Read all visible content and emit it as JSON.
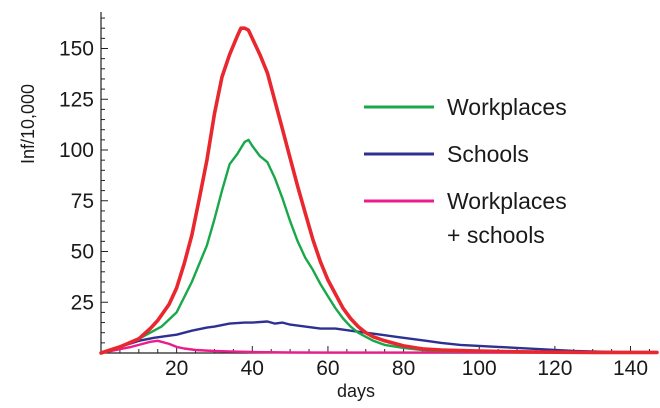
{
  "chart_data": {
    "type": "line",
    "title": "",
    "xlabel": "days",
    "ylabel": "Inf/10,000",
    "xlim": [
      0,
      147
    ],
    "ylim": [
      0,
      167
    ],
    "xticks": [
      20,
      40,
      60,
      80,
      100,
      120,
      140
    ],
    "yticks": [
      25,
      50,
      75,
      100,
      125,
      150
    ],
    "grid": false,
    "legend_position": "right",
    "series": [
      {
        "name": "",
        "color": "#e8282e",
        "x": [
          0,
          5,
          10,
          13,
          15,
          18,
          20,
          22,
          24,
          26,
          28,
          30,
          32,
          34,
          36,
          37,
          38,
          39,
          40,
          42,
          44,
          46,
          48,
          50,
          52,
          54,
          56,
          58,
          60,
          62,
          64,
          66,
          68,
          70,
          72,
          75,
          80,
          85,
          90,
          100,
          110,
          120,
          130,
          140,
          147
        ],
        "y": [
          0,
          3,
          7,
          12,
          16,
          24,
          32,
          44,
          58,
          76,
          95,
          118,
          136,
          147,
          156,
          160,
          160,
          159,
          155,
          147,
          138,
          124,
          110,
          96,
          82,
          69,
          56,
          45,
          36,
          29,
          22,
          17,
          13,
          10,
          8,
          6,
          3.5,
          2,
          1.5,
          1,
          0.6,
          0.4,
          0.3,
          0.3,
          0.3
        ]
      },
      {
        "name": "Workplaces",
        "color": "#18a84a",
        "x": [
          0,
          5,
          10,
          13,
          16,
          20,
          24,
          28,
          30,
          32,
          34,
          36,
          38,
          39,
          40,
          42,
          44,
          46,
          48,
          50,
          52,
          54,
          56,
          58,
          60,
          62,
          64,
          66,
          68,
          70,
          72,
          75,
          80,
          85,
          90,
          100,
          110,
          120,
          130,
          140,
          147
        ],
        "y": [
          0,
          3,
          7,
          10,
          13,
          20,
          35,
          53,
          66,
          80,
          93,
          98,
          104,
          105,
          102,
          97,
          94,
          86,
          76,
          65,
          55,
          47,
          41,
          34,
          28,
          22,
          17,
          13,
          10,
          8,
          6,
          4,
          2.5,
          1.5,
          1,
          0.7,
          0.5,
          0.4,
          0.3,
          0.3,
          0.3
        ]
      },
      {
        "name": "Schools",
        "color": "#2e3192",
        "x": [
          0,
          5,
          10,
          14,
          18,
          20,
          24,
          28,
          30,
          34,
          38,
          40,
          44,
          46,
          48,
          50,
          54,
          58,
          62,
          66,
          70,
          74,
          78,
          82,
          86,
          90,
          95,
          100,
          105,
          110,
          115,
          120,
          125,
          130,
          135,
          140,
          147
        ],
        "y": [
          0,
          3,
          6,
          7.5,
          8.5,
          9,
          11,
          12.5,
          13,
          14.5,
          15,
          15,
          15.5,
          14.5,
          15,
          14,
          13,
          12,
          12,
          11,
          10,
          9,
          8,
          7,
          6,
          5,
          4,
          3.5,
          3,
          2.5,
          2,
          1.5,
          1,
          0.8,
          0.5,
          0.3,
          0.3
        ]
      },
      {
        "name": "Workplaces + schools",
        "color": "#ec1c8c",
        "x": [
          0,
          4,
          8,
          11,
          13,
          15,
          16,
          18,
          20,
          22,
          25,
          30,
          35,
          40,
          50,
          60,
          80,
          100,
          120,
          147
        ],
        "y": [
          0,
          1.5,
          3,
          4.5,
          5.5,
          6,
          5.5,
          4.5,
          3,
          2.2,
          1.5,
          1,
          0.7,
          0.5,
          0.3,
          0.2,
          0.2,
          0.2,
          0.2,
          0.2
        ]
      }
    ]
  }
}
